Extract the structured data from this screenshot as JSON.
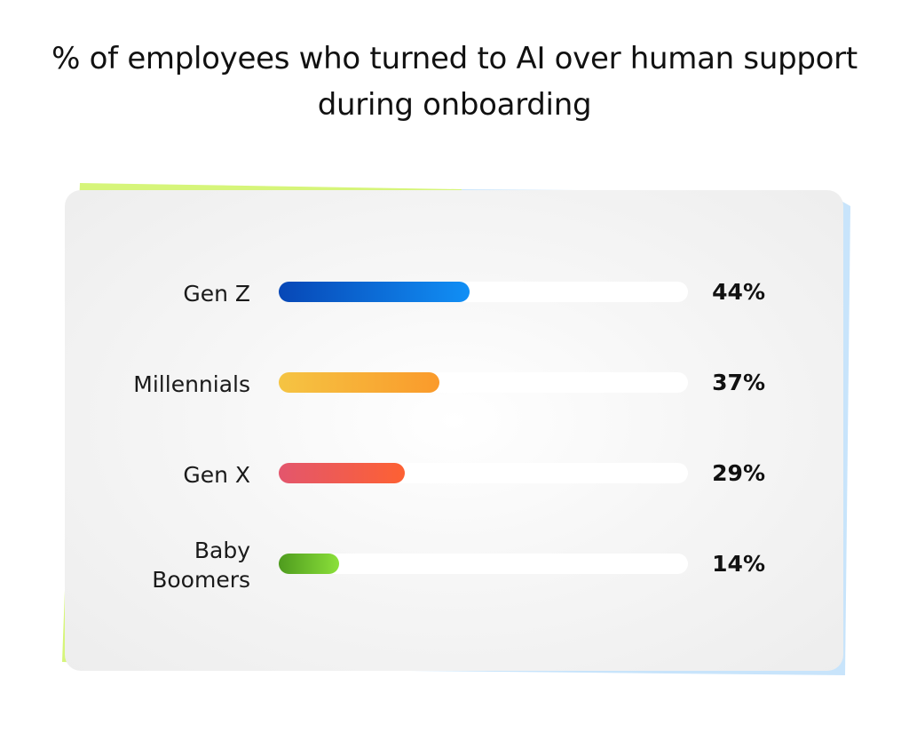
{
  "chart_data": {
    "type": "bar",
    "orientation": "horizontal",
    "title": "% of employees who turned to AI over human support during onboarding",
    "categories": [
      "Gen Z",
      "Millennials",
      "Gen X",
      "Baby Boomers"
    ],
    "category_lines": [
      [
        "Gen Z"
      ],
      [
        "Millennials"
      ],
      [
        "Gen X"
      ],
      [
        "Baby",
        "Boomers"
      ]
    ],
    "values": [
      44,
      37,
      29,
      14
    ],
    "value_labels": [
      "44%",
      "37%",
      "29%",
      "14%"
    ],
    "unit": "%",
    "xlim": [
      0,
      100
    ],
    "grid": false,
    "legend": "none",
    "bar_colors": [
      [
        "#0747b6",
        "#118ff5"
      ],
      [
        "#f5c443",
        "#fa9a2b"
      ],
      [
        "#e3566d",
        "#fd6133"
      ],
      [
        "#4e9b1e",
        "#8be03a"
      ]
    ],
    "track_color": "#ffffff",
    "card_colors": {
      "left_edge": "#d4f779",
      "right_edge": "#c6e2fb",
      "face": "#f2f2f2"
    }
  }
}
